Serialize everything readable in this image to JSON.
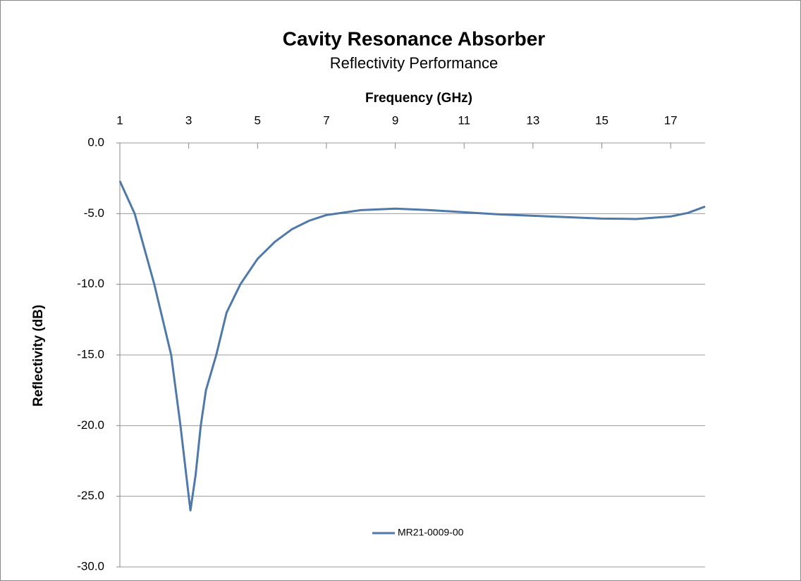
{
  "chart_data": {
    "type": "line",
    "title": "Cavity Resonance Absorber",
    "subtitle": "Reflectivity Performance",
    "x_label": "Frequency (GHz)",
    "y_label": "Reflectivity (dB)",
    "x": [
      1,
      1.43,
      2,
      2.49,
      2.76,
      3,
      3.05,
      3.2,
      3.35,
      3.5,
      3.8,
      4.1,
      4.5,
      5,
      5.5,
      6,
      6.5,
      7,
      8,
      9,
      10,
      11,
      12,
      13,
      14,
      15,
      16,
      17,
      17.5,
      18
    ],
    "series": [
      {
        "name": "MR21-0009-00",
        "color": "#4f79a8",
        "values": [
          -2.7,
          -5.0,
          -10.0,
          -15.0,
          -20.0,
          -25.0,
          -26.0,
          -23.5,
          -20.0,
          -17.5,
          -15.0,
          -12.0,
          -10.0,
          -8.2,
          -7.0,
          -6.1,
          -5.5,
          -5.1,
          -4.75,
          -4.65,
          -4.75,
          -4.9,
          -5.05,
          -5.15,
          -5.25,
          -5.35,
          -5.38,
          -5.2,
          -4.95,
          -4.5
        ]
      }
    ],
    "xlim": [
      1,
      18
    ],
    "xticks": [
      1,
      3,
      5,
      7,
      9,
      11,
      13,
      15,
      17
    ],
    "ylim": [
      -30,
      0
    ],
    "yticks": [
      {
        "value": 0,
        "label": "0.0"
      },
      {
        "value": -5,
        "label": "-5.0"
      },
      {
        "value": -10,
        "label": "-10.0"
      },
      {
        "value": -15,
        "label": "-15.0"
      },
      {
        "value": -20,
        "label": "-20.0"
      },
      {
        "value": -25,
        "label": "-25.0"
      },
      {
        "value": -30,
        "label": "-30.0"
      }
    ],
    "grid": true,
    "legend": "bottom"
  }
}
